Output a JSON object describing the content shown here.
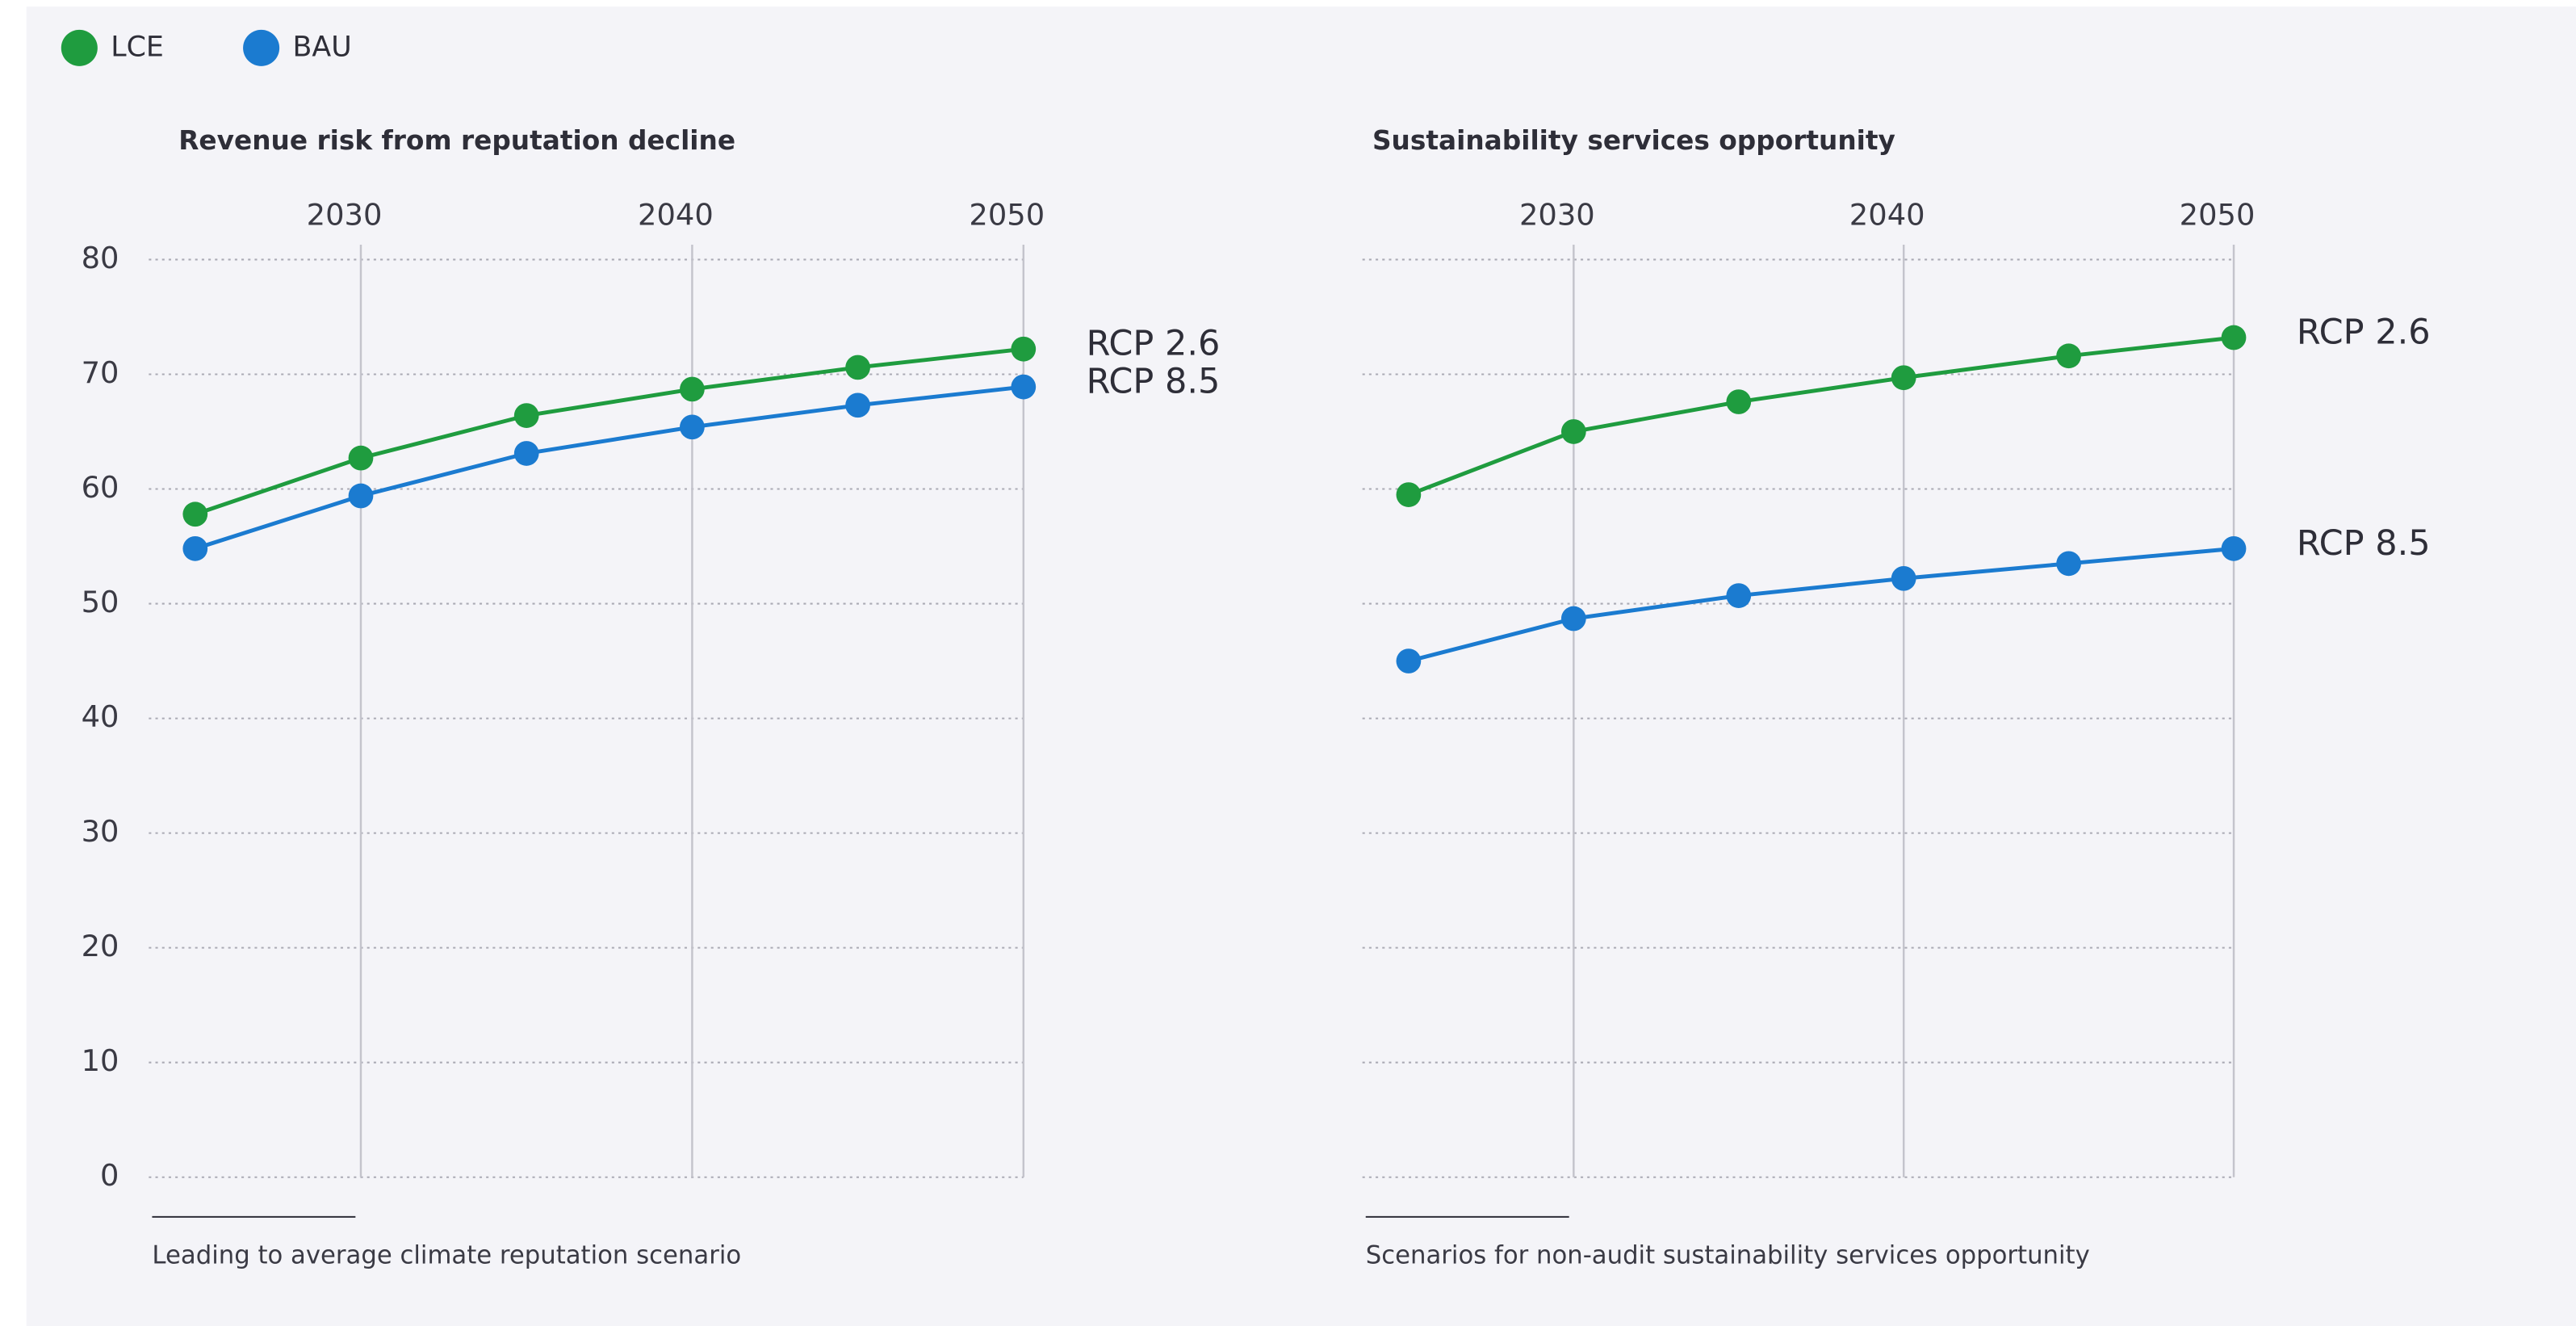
{
  "legend": [
    {
      "name": "LCE",
      "color": "#1f9c3f"
    },
    {
      "name": "BAU",
      "color": "#1b7bd0"
    }
  ],
  "chart_data": [
    {
      "type": "line",
      "title": "Revenue risk from reputation decline",
      "footnote": "Leading to average climate reputation scenario",
      "x": [
        2025,
        2030,
        2035,
        2040,
        2045,
        2050
      ],
      "series": [
        {
          "label": "RCP 2.6",
          "color": "#1f9c3f",
          "values": [
            57.8,
            62.7,
            66.4,
            68.7,
            70.6,
            72.2
          ]
        },
        {
          "label": "RCP 8.5",
          "color": "#1b7bd0",
          "values": [
            54.8,
            59.4,
            63.1,
            65.4,
            67.3,
            68.9
          ]
        }
      ],
      "xlim": [
        2023.6,
        2050
      ],
      "xticks": [
        2030,
        2040,
        2050
      ],
      "ylim": [
        0,
        80
      ],
      "yticks": [
        0,
        10,
        20,
        30,
        40,
        50,
        60,
        70,
        80
      ],
      "show_ytick_labels": true,
      "grid": true
    },
    {
      "type": "line",
      "title": "Sustainability services opportunity",
      "footnote": "Scenarios for non-audit sustainability services opportunity",
      "x": [
        2025,
        2030,
        2035,
        2040,
        2045,
        2050
      ],
      "series": [
        {
          "label": "RCP 2.6",
          "color": "#1f9c3f",
          "values": [
            59.5,
            65.0,
            67.6,
            69.7,
            71.6,
            73.2
          ]
        },
        {
          "label": "RCP 8.5",
          "color": "#1b7bd0",
          "values": [
            45.0,
            48.7,
            50.7,
            52.2,
            53.5,
            54.8
          ]
        }
      ],
      "xlim": [
        2023.6,
        2050
      ],
      "xticks": [
        2030,
        2040,
        2050
      ],
      "ylim": [
        0,
        80
      ],
      "yticks": [
        0,
        10,
        20,
        30,
        40,
        50,
        60,
        70,
        80
      ],
      "show_ytick_labels": false,
      "grid": true
    }
  ]
}
